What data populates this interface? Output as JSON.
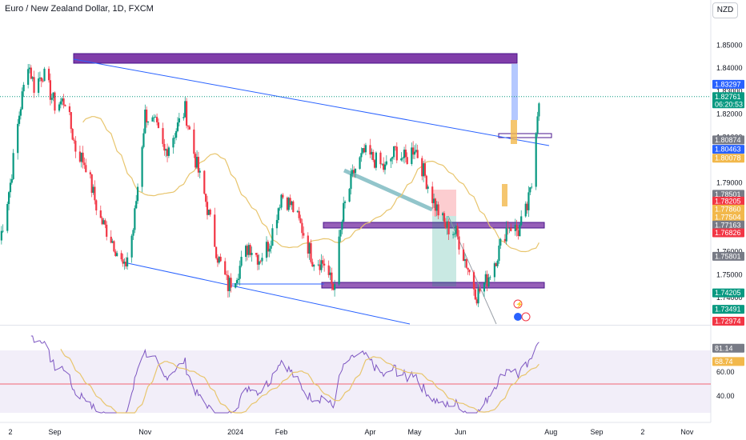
{
  "header": {
    "title": "Euro / New Zealand Dollar, 1D, FXCM",
    "currency_button": "NZD"
  },
  "chart_data": {
    "type": "candlestick",
    "title": "Euro / New Zealand Dollar, 1D, FXCM",
    "price_axis": {
      "ylim": [
        1.7285,
        1.861
      ],
      "ticks": [
        {
          "value": 1.85,
          "label": "1.85000"
        },
        {
          "value": 1.84,
          "label": "1.84000"
        },
        {
          "value": 1.83,
          "label": "1.83000"
        },
        {
          "value": 1.82,
          "label": "1.82000"
        },
        {
          "value": 1.81,
          "label": "1.81000"
        },
        {
          "value": 1.8,
          "label": "1.80000"
        },
        {
          "value": 1.79,
          "label": "1.79000"
        },
        {
          "value": 1.78,
          "label": "1.78000"
        },
        {
          "value": 1.77,
          "label": "1.77000"
        },
        {
          "value": 1.76,
          "label": "1.76000"
        },
        {
          "value": 1.75,
          "label": "1.75000"
        },
        {
          "value": 1.74,
          "label": "1.74000"
        }
      ],
      "badges": [
        {
          "value": 1.83297,
          "label": "1.83297",
          "color": "#2962ff"
        },
        {
          "value": 1.82761,
          "label": "1.82761",
          "sub": "06:20:53",
          "color": "#089981"
        },
        {
          "value": 1.80874,
          "label": "1.80874",
          "color": "#787b86"
        },
        {
          "value": 1.80463,
          "label": "1.80463",
          "color": "#2962ff"
        },
        {
          "value": 1.80078,
          "label": "1.80078",
          "color": "#f2b84b"
        },
        {
          "value": 1.78501,
          "label": "1.78501",
          "color": "#787b86"
        },
        {
          "value": 1.78205,
          "label": "1.78205",
          "color": "#f23645"
        },
        {
          "value": 1.7786,
          "label": "1.77860",
          "color": "#f2b84b"
        },
        {
          "value": 1.77504,
          "label": "1.77504",
          "color": "#f2b84b"
        },
        {
          "value": 1.77163,
          "label": "1.77163",
          "color": "#787b86"
        },
        {
          "value": 1.76826,
          "label": "1.76826",
          "color": "#f23645"
        },
        {
          "value": 1.75801,
          "label": "1.75801",
          "color": "#787b86"
        },
        {
          "value": 1.74205,
          "label": "1.74205",
          "color": "#089981"
        },
        {
          "value": 1.73491,
          "label": "1.73491",
          "color": "#089981"
        },
        {
          "value": 1.72974,
          "label": "1.72974",
          "color": "#f23645"
        }
      ]
    },
    "time_axis": {
      "range": [
        "2023-07-26",
        "2024-11-17"
      ],
      "labels": [
        {
          "date": "2023-08-02",
          "label": "2"
        },
        {
          "date": "2023-09-01",
          "label": "Sep"
        },
        {
          "date": "2023-11-01",
          "label": "Nov"
        },
        {
          "date": "2024-01-01",
          "label": "2024"
        },
        {
          "date": "2024-02-01",
          "label": "Feb"
        },
        {
          "date": "2024-04-01",
          "label": "Apr"
        },
        {
          "date": "2024-05-01",
          "label": "May"
        },
        {
          "date": "2024-06-01",
          "label": "Jun"
        },
        {
          "date": "2024-08-01",
          "label": "Aug"
        },
        {
          "date": "2024-09-01",
          "label": "Sep"
        },
        {
          "date": "2024-10-02",
          "label": "2"
        },
        {
          "date": "2024-11-01",
          "label": "Nov"
        }
      ]
    },
    "colors": {
      "up": "#089981",
      "down": "#f23645",
      "ma": "#e8c56d",
      "channel": "#2962ff",
      "zone": "#6a0dad",
      "rsi": "#7e57c2"
    },
    "anchors": [
      {
        "date": "2023-07-26",
        "close": 1.765
      },
      {
        "date": "2023-08-02",
        "close": 1.79
      },
      {
        "date": "2023-08-08",
        "close": 1.82
      },
      {
        "date": "2023-08-14",
        "close": 1.843
      },
      {
        "date": "2023-08-18",
        "close": 1.832
      },
      {
        "date": "2023-08-24",
        "close": 1.838
      },
      {
        "date": "2023-09-01",
        "close": 1.824
      },
      {
        "date": "2023-09-08",
        "close": 1.826
      },
      {
        "date": "2023-09-15",
        "close": 1.805
      },
      {
        "date": "2023-09-22",
        "close": 1.798
      },
      {
        "date": "2023-10-01",
        "close": 1.775
      },
      {
        "date": "2023-10-10",
        "close": 1.765
      },
      {
        "date": "2023-10-18",
        "close": 1.752
      },
      {
        "date": "2023-10-24",
        "close": 1.77
      },
      {
        "date": "2023-11-01",
        "close": 1.82
      },
      {
        "date": "2023-11-08",
        "close": 1.815
      },
      {
        "date": "2023-11-14",
        "close": 1.803
      },
      {
        "date": "2023-11-21",
        "close": 1.812
      },
      {
        "date": "2023-11-28",
        "close": 1.822
      },
      {
        "date": "2023-12-05",
        "close": 1.8
      },
      {
        "date": "2023-12-12",
        "close": 1.782
      },
      {
        "date": "2023-12-20",
        "close": 1.758
      },
      {
        "date": "2023-12-27",
        "close": 1.745
      },
      {
        "date": "2024-01-03",
        "close": 1.752
      },
      {
        "date": "2024-01-10",
        "close": 1.763
      },
      {
        "date": "2024-01-17",
        "close": 1.757
      },
      {
        "date": "2024-01-24",
        "close": 1.764
      },
      {
        "date": "2024-02-01",
        "close": 1.785
      },
      {
        "date": "2024-02-08",
        "close": 1.78
      },
      {
        "date": "2024-02-15",
        "close": 1.77
      },
      {
        "date": "2024-02-22",
        "close": 1.757
      },
      {
        "date": "2024-03-01",
        "close": 1.755
      },
      {
        "date": "2024-03-07",
        "close": 1.744
      },
      {
        "date": "2024-03-14",
        "close": 1.778
      },
      {
        "date": "2024-03-21",
        "close": 1.795
      },
      {
        "date": "2024-03-28",
        "close": 1.803
      },
      {
        "date": "2024-04-04",
        "close": 1.8
      },
      {
        "date": "2024-04-11",
        "close": 1.796
      },
      {
        "date": "2024-04-18",
        "close": 1.804
      },
      {
        "date": "2024-04-25",
        "close": 1.8
      },
      {
        "date": "2024-05-01",
        "close": 1.806
      },
      {
        "date": "2024-05-08",
        "close": 1.793
      },
      {
        "date": "2024-05-15",
        "close": 1.78
      },
      {
        "date": "2024-05-22",
        "close": 1.771
      },
      {
        "date": "2024-05-29",
        "close": 1.768
      },
      {
        "date": "2024-06-05",
        "close": 1.755
      },
      {
        "date": "2024-06-12",
        "close": 1.741
      },
      {
        "date": "2024-06-19",
        "close": 1.748
      },
      {
        "date": "2024-06-26",
        "close": 1.759
      },
      {
        "date": "2024-07-03",
        "close": 1.772
      },
      {
        "date": "2024-07-10",
        "close": 1.769
      },
      {
        "date": "2024-07-16",
        "close": 1.779
      },
      {
        "date": "2024-07-19",
        "close": 1.789
      },
      {
        "date": "2024-07-22",
        "close": 1.815
      },
      {
        "date": "2024-07-24",
        "close": 1.8276
      }
    ],
    "rsi": {
      "ylim": [
        26,
        90
      ],
      "ticks": [
        {
          "value": 60,
          "label": "60.00"
        },
        {
          "value": 40,
          "label": "40.00"
        }
      ],
      "band": [
        30,
        70
      ],
      "midline": 50,
      "rsi_badge": {
        "value": 81.14,
        "label": "81.14"
      },
      "ma_badge": {
        "value": 68.74,
        "label": "68.74"
      }
    }
  }
}
